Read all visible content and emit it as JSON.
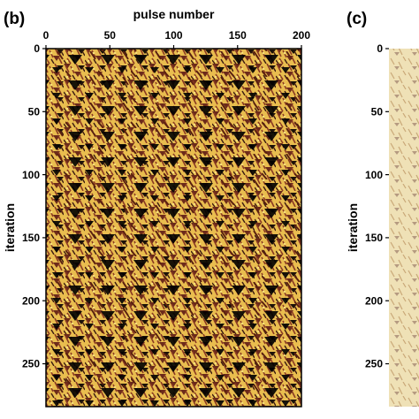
{
  "chart_data": [
    {
      "type": "heatmap",
      "panel_label": "(b)",
      "xlabel": "pulse number",
      "ylabel": "iteration",
      "xlim": [
        0,
        200
      ],
      "xticks": [
        0,
        50,
        100,
        150,
        200
      ],
      "ylim": [
        0,
        284
      ],
      "yticks": [
        0,
        50,
        100,
        150,
        200,
        250
      ]
    },
    {
      "type": "heatmap",
      "panel_label": "(c)",
      "ylabel": "iteration",
      "ylim": [
        0,
        284
      ],
      "yticks": [
        0,
        50,
        100,
        150,
        200,
        250
      ]
    }
  ]
}
